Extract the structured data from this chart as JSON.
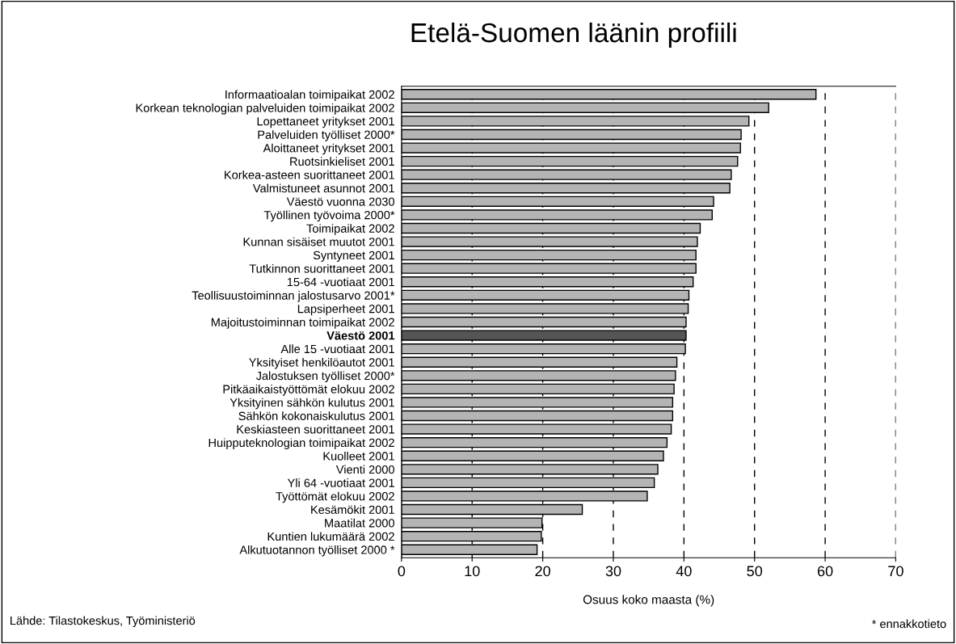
{
  "chart_data": {
    "type": "bar",
    "orientation": "horizontal",
    "title": "Etelä-Suomen läänin profiili",
    "xlabel": "Osuus koko maasta (%)",
    "categories": [
      "Informaatioalan toimipaikat 2002",
      "Korkean teknologian palveluiden toimipaikat 2002",
      "Lopettaneet yritykset 2001",
      "Palveluiden työlliset 2000*",
      "Aloittaneet yritykset 2001",
      "Ruotsinkieliset 2001",
      "Korkea-asteen suorittaneet 2001",
      "Valmistuneet asunnot 2001",
      "Väestö vuonna 2030",
      "Työllinen työvoima 2000*",
      "Toimipaikat 2002",
      "Kunnan sisäiset muutot 2001",
      "Syntyneet 2001",
      "Tutkinnon suorittaneet 2001",
      "15-64 -vuotiaat 2001",
      "Teollisuustoiminnan jalostusarvo 2001*",
      "Lapsiperheet 2001",
      "Majoitustoiminnan toimipaikat 2002",
      "Väestö 2001",
      "Alle 15 -vuotiaat 2001",
      "Yksityiset henkilöautot 2001",
      "Jalostuksen työlliset 2000*",
      "Pitkäaikaistyöttömät elokuu 2002",
      "Yksityinen sähkön kulutus 2001",
      "Sähkön kokonaiskulutus 2001",
      "Keskiasteen suorittaneet 2001",
      "Huipputeknologian toimipaikat 2002",
      "Kuolleet 2001",
      "Vienti 2000",
      "Yli 64 -vuotiaat 2001",
      "Työttömät elokuu 2002",
      "Kesämökit 2001",
      "Maatilat 2000",
      "Kuntien lukumäärä 2002",
      "Alkutuotannon työlliset 2000 *"
    ],
    "values": [
      58.7,
      52.0,
      49.2,
      48.1,
      48.0,
      47.6,
      46.7,
      46.5,
      44.2,
      44.0,
      42.3,
      41.9,
      41.7,
      41.7,
      41.3,
      40.7,
      40.6,
      40.3,
      40.3,
      40.2,
      39.0,
      38.8,
      38.6,
      38.4,
      38.4,
      38.2,
      37.6,
      37.1,
      36.3,
      35.8,
      34.8,
      25.6,
      19.9,
      19.8,
      19.2
    ],
    "colors": [
      "#b4b4b4",
      "#b4b4b4",
      "#b4b4b4",
      "#b4b4b4",
      "#b4b4b4",
      "#b4b4b4",
      "#b4b4b4",
      "#b4b4b4",
      "#b4b4b4",
      "#b4b4b4",
      "#b4b4b4",
      "#b4b4b4",
      "#b4b4b4",
      "#b4b4b4",
      "#b4b4b4",
      "#b4b4b4",
      "#b4b4b4",
      "#b4b4b4",
      "#555555",
      "#b4b4b4",
      "#b4b4b4",
      "#b4b4b4",
      "#b4b4b4",
      "#b4b4b4",
      "#b4b4b4",
      "#b4b4b4",
      "#b4b4b4",
      "#b4b4b4",
      "#b4b4b4",
      "#b4b4b4",
      "#b4b4b4",
      "#b4b4b4",
      "#b4b4b4",
      "#b4b4b4",
      "#b4b4b4"
    ],
    "xlim": [
      0,
      70
    ],
    "xticks": [
      0,
      10,
      20,
      30,
      40,
      50,
      60,
      70
    ],
    "grid": "x",
    "line_style": "dashed",
    "annotations": [
      "Lähde: Tilastokeskus, Työministeriö",
      "* ennakkotieto"
    ]
  }
}
